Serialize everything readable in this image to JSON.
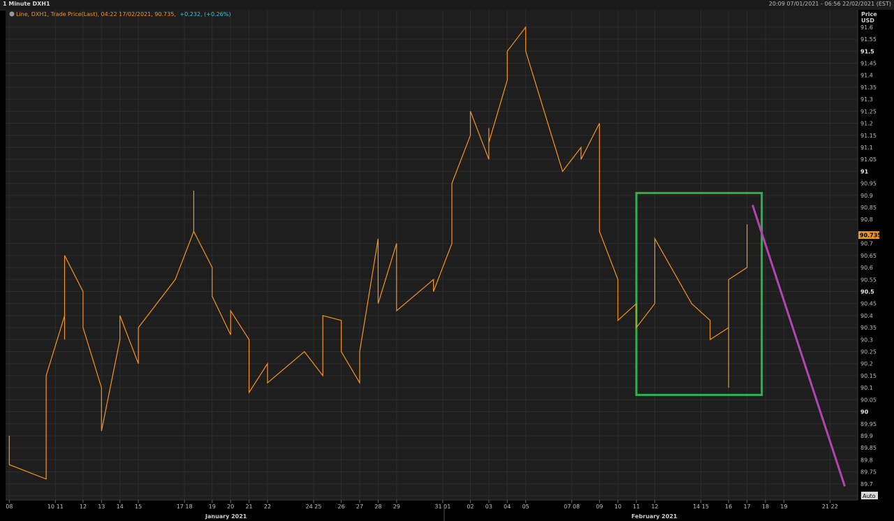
{
  "window": {
    "title": "1 Minute DXH1",
    "date_range": "20:09 07/01/2021 - 06:56 22/02/2021 (EST)"
  },
  "legend": {
    "icon": "chart-settings-icon",
    "label": "Line, DXH1, Trade Price(Last), 04:22 17/02/2021, 90.735,",
    "change": "+0.232, (+0.26%)",
    "label_color": "#f7931e",
    "change_color": "#35c6d9"
  },
  "y_axis": {
    "title": "Price",
    "unit": "USD",
    "last_price": "90.735",
    "auto_label": "Auto",
    "major_ticks": [
      "91.5",
      "91",
      "90.5",
      "90"
    ]
  },
  "x_axis": {
    "months": [
      "January 2021",
      "February 2021"
    ]
  },
  "colors": {
    "background": "#1e1e1e",
    "line": "#f7931e",
    "box": "#2bb24c",
    "trend": "#b344b3",
    "price_tag": "#f7931e"
  },
  "chart_data": {
    "type": "line",
    "series": [
      {
        "x": [
          "2021-01-08",
          "2021-01-08",
          "2021-01-10",
          "2021-01-10",
          "2021-01-11",
          "2021-01-11",
          "2021-01-11",
          "2021-01-12",
          "2021-01-12",
          "2021-01-13",
          "2021-01-13",
          "2021-01-13",
          "2021-01-14",
          "2021-01-14",
          "2021-01-15",
          "2021-01-15",
          "2021-01-17",
          "2021-01-18",
          "2021-01-18",
          "2021-01-18",
          "2021-01-19",
          "2021-01-19",
          "2021-01-20",
          "2021-01-20",
          "2021-01-21",
          "2021-01-21",
          "2021-01-21",
          "2021-01-22",
          "2021-01-22",
          "2021-01-24",
          "2021-01-25",
          "2021-01-25",
          "2021-01-26",
          "2021-01-26",
          "2021-01-27",
          "2021-01-27",
          "2021-01-28",
          "2021-01-28",
          "2021-01-28",
          "2021-01-29",
          "2021-01-29",
          "2021-01-31",
          "2021-01-31",
          "2021-02-01",
          "2021-02-01",
          "2021-02-01",
          "2021-02-02",
          "2021-02-02",
          "2021-02-03",
          "2021-02-03",
          "2021-02-03",
          "2021-02-04",
          "2021-02-04",
          "2021-02-05",
          "2021-02-05",
          "2021-02-07",
          "2021-02-08",
          "2021-02-08",
          "2021-02-09",
          "2021-02-09",
          "2021-02-09",
          "2021-02-10",
          "2021-02-10",
          "2021-02-11",
          "2021-02-11",
          "2021-02-12",
          "2021-02-12",
          "2021-02-12",
          "2021-02-14",
          "2021-02-15",
          "2021-02-15",
          "2021-02-16",
          "2021-02-16",
          "2021-02-16",
          "2021-02-16",
          "2021-02-17",
          "2021-02-17"
        ],
        "y": [
          89.9,
          89.78,
          89.72,
          90.15,
          90.4,
          90.3,
          90.65,
          90.5,
          90.35,
          90.1,
          89.95,
          89.92,
          90.3,
          90.4,
          90.2,
          90.35,
          90.55,
          90.75,
          90.92,
          90.75,
          90.6,
          90.48,
          90.32,
          90.42,
          90.3,
          90.12,
          90.08,
          90.2,
          90.12,
          90.25,
          90.15,
          90.4,
          90.38,
          90.25,
          90.12,
          90.25,
          90.72,
          90.62,
          90.45,
          90.7,
          90.42,
          90.55,
          90.5,
          90.7,
          90.85,
          90.95,
          91.15,
          91.25,
          91.05,
          91.18,
          91.12,
          91.38,
          91.5,
          91.6,
          91.5,
          91.0,
          91.1,
          91.05,
          91.2,
          91.0,
          90.75,
          90.55,
          90.38,
          90.45,
          90.35,
          90.45,
          90.52,
          90.72,
          90.45,
          90.38,
          90.3,
          90.35,
          90.12,
          90.1,
          90.55,
          90.6,
          90.78
        ]
      }
    ],
    "ylim": [
      89.65,
      91.62
    ],
    "y_ticks": [
      91.6,
      91.55,
      91.5,
      91.45,
      91.4,
      91.35,
      91.3,
      91.25,
      91.2,
      91.15,
      91.1,
      91.05,
      91.0,
      90.95,
      90.9,
      90.85,
      90.8,
      90.7,
      90.65,
      90.6,
      90.55,
      90.5,
      90.45,
      90.4,
      90.35,
      90.3,
      90.25,
      90.2,
      90.15,
      90.1,
      90.05,
      90.0,
      89.95,
      89.9,
      89.85,
      89.8,
      89.75,
      89.7,
      89.65
    ],
    "x_ticks": [
      "08",
      "10 11",
      "12",
      "13",
      "14",
      "15",
      "17 18",
      "19",
      "20",
      "21",
      "22",
      "24 25",
      "26",
      "27",
      "28",
      "29",
      "31 01",
      "02",
      "03",
      "04",
      "05",
      "07 08",
      "09",
      "10",
      "11",
      "12",
      "14 15",
      "16",
      "17",
      "18",
      "19",
      "21 22"
    ],
    "x_tick_dates": [
      "2021-01-08",
      "2021-01-10.5",
      "2021-01-12",
      "2021-01-13",
      "2021-01-14",
      "2021-01-15",
      "2021-01-17.5",
      "2021-01-19",
      "2021-01-20",
      "2021-01-21",
      "2021-01-22",
      "2021-01-24.5",
      "2021-01-26",
      "2021-01-27",
      "2021-01-28",
      "2021-01-29",
      "2021-01-31.5",
      "2021-02-02",
      "2021-02-03",
      "2021-02-04",
      "2021-02-05",
      "2021-02-07.5",
      "2021-02-09",
      "2021-02-10",
      "2021-02-11",
      "2021-02-12",
      "2021-02-14.5",
      "2021-02-16",
      "2021-02-17",
      "2021-02-18",
      "2021-02-19",
      "2021-02-21.5"
    ],
    "annotations": [
      {
        "type": "rectangle",
        "x": [
          "2021-02-11",
          "2021-02-17.8"
        ],
        "y": [
          90.07,
          90.91
        ],
        "color": "green"
      },
      {
        "type": "trendline",
        "x": [
          "2021-02-17.3",
          "2021-02-22.3"
        ],
        "y": [
          90.86,
          89.69
        ],
        "color": "purple"
      }
    ],
    "grid": true
  }
}
